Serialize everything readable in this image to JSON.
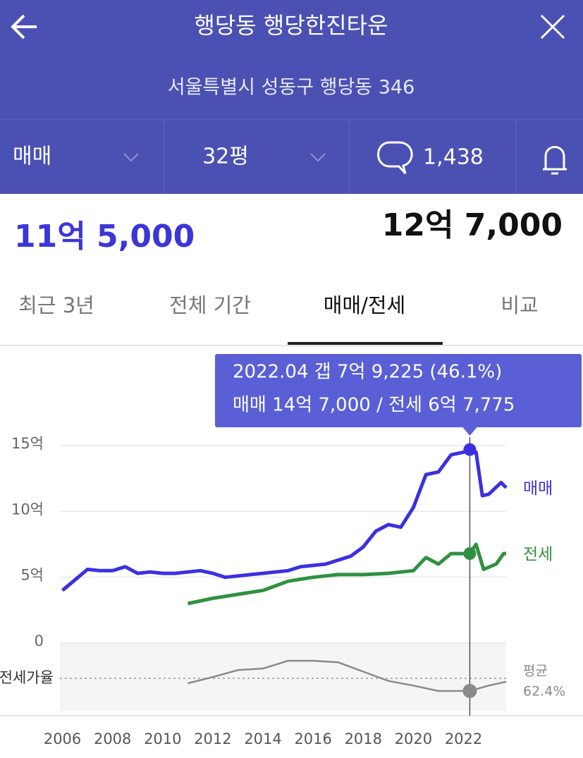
{
  "header": {
    "title": "행당동 행당한진타운",
    "address": "서울특별시 성동구 행당동 346"
  },
  "filters": {
    "deal": "매매",
    "size": "32평",
    "comments": "1,438"
  },
  "prices": {
    "left": "11억 5,000",
    "right": "12억 7,000"
  },
  "tabs": {
    "items": [
      "최근 3년",
      "전체 기간",
      "매매/전세",
      "비교"
    ],
    "active": "매매/전세"
  },
  "chart_data": {
    "type": "line",
    "tooltip": {
      "lines": [
        "2022.04  갭 7억 9,225 (46.1%)",
        "매매 14억 7,000 / 전세 6억 7,775"
      ],
      "x": 2022.25
    },
    "xlim": [
      2005.9,
      2023.7
    ],
    "xticks": [
      2006,
      2008,
      2010,
      2012,
      2014,
      2016,
      2018,
      2020,
      2022
    ],
    "ylim": [
      0,
      15
    ],
    "yticks": [
      0,
      {
        "value": 5,
        "label": "5억"
      },
      {
        "value": 10,
        "label": "10억"
      },
      {
        "value": 15,
        "label": "15억"
      }
    ],
    "grid": true,
    "ratio_label": "전세가율",
    "ratio_average": {
      "label": "평균",
      "value": 62.4,
      "value_label": "62.4%"
    },
    "series": [
      {
        "name": "매매",
        "color": "#3b30e0",
        "x": [
          2006.0,
          2006.5,
          2007.0,
          2007.5,
          2008.0,
          2008.5,
          2009.0,
          2009.5,
          2010.0,
          2010.5,
          2011.0,
          2011.5,
          2012.0,
          2012.5,
          2013.0,
          2013.5,
          2014.0,
          2014.5,
          2015.0,
          2015.5,
          2016.0,
          2016.5,
          2017.0,
          2017.5,
          2018.0,
          2018.5,
          2019.0,
          2019.5,
          2020.0,
          2020.5,
          2021.0,
          2021.5,
          2022.0,
          2022.25,
          2022.5,
          2022.75,
          2023.0,
          2023.5,
          2023.7
        ],
        "values": [
          4.0,
          4.8,
          5.6,
          5.5,
          5.5,
          5.8,
          5.3,
          5.4,
          5.3,
          5.3,
          5.4,
          5.5,
          5.3,
          5.0,
          5.1,
          5.2,
          5.3,
          5.4,
          5.5,
          5.8,
          5.9,
          6.0,
          6.3,
          6.6,
          7.3,
          8.5,
          9.0,
          8.8,
          10.3,
          12.8,
          13.0,
          14.3,
          14.5,
          14.7,
          14.5,
          11.2,
          11.3,
          12.2,
          11.8
        ]
      },
      {
        "name": "전세",
        "color": "#2f9141",
        "x": [
          2011.0,
          2012.0,
          2013.0,
          2014.0,
          2015.0,
          2016.0,
          2017.0,
          2018.0,
          2019.0,
          2020.0,
          2020.5,
          2021.0,
          2021.5,
          2022.25,
          2022.5,
          2022.8,
          2023.3,
          2023.6,
          2023.7
        ],
        "values": [
          3.0,
          3.4,
          3.7,
          4.0,
          4.7,
          5.0,
          5.2,
          5.2,
          5.3,
          5.5,
          6.5,
          6.0,
          6.8,
          6.8,
          7.5,
          5.6,
          6.0,
          6.8,
          6.8
        ]
      },
      {
        "name": "전세가율",
        "color": "#8a8a8a",
        "axis": "y2",
        "x": [
          2011.0,
          2012.0,
          2013.0,
          2014.0,
          2015.0,
          2016.0,
          2017.0,
          2018.0,
          2019.0,
          2020.0,
          2021.0,
          2022.25,
          2023.0,
          2023.7
        ],
        "values": [
          56,
          64,
          73,
          75,
          85,
          85,
          83,
          71,
          59,
          53,
          46,
          46.1,
          53,
          58
        ]
      }
    ]
  }
}
